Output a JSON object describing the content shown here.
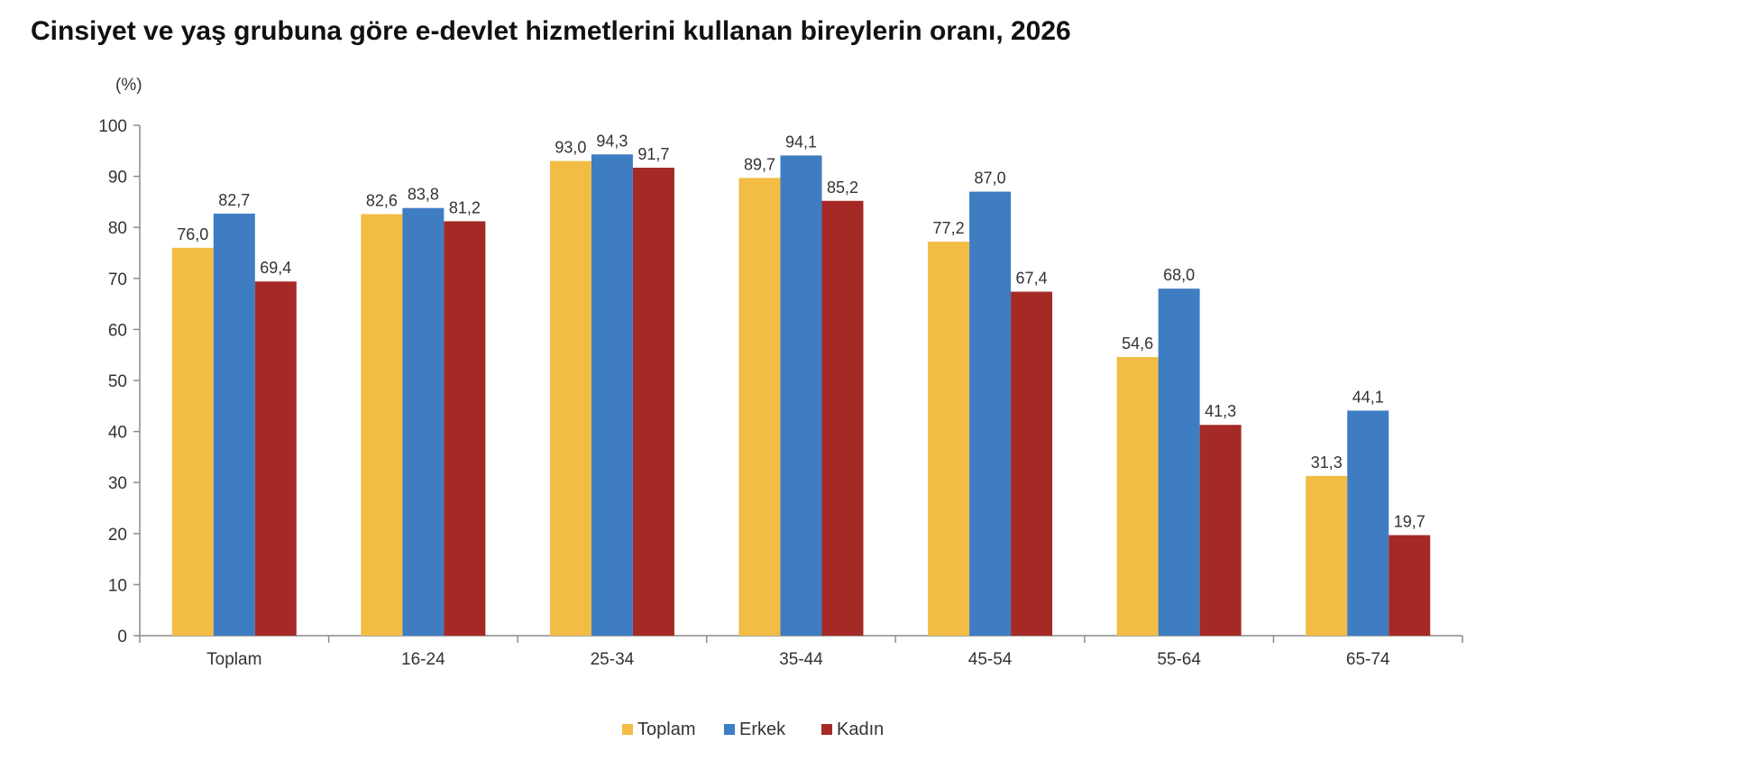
{
  "title": "Cinsiyet ve yaş grubuna göre e-devlet hizmetlerini kullanan bireylerin oranı, 2026",
  "colors": {
    "Toplam": "#F2BC45",
    "Erkek": "#3F7DC3",
    "Kadın": "#A52A25"
  },
  "chart_data": {
    "type": "bar",
    "unit_label": "(%)",
    "categories": [
      "Toplam",
      "16-24",
      "25-34",
      "35-44",
      "45-54",
      "55-64",
      "65-74"
    ],
    "series": [
      {
        "name": "Toplam",
        "values": [
          76.0,
          82.6,
          93.0,
          89.7,
          77.2,
          54.6,
          31.3
        ],
        "labels": [
          "76,0",
          "82,6",
          "93,0",
          "89,7",
          "77,2",
          "54,6",
          "31,3"
        ]
      },
      {
        "name": "Erkek",
        "values": [
          82.7,
          83.8,
          94.3,
          94.1,
          87.0,
          68.0,
          44.1
        ],
        "labels": [
          "82,7",
          "83,8",
          "94,3",
          "94,1",
          "87,0",
          "68,0",
          "44,1"
        ]
      },
      {
        "name": "Kadın",
        "values": [
          69.4,
          81.2,
          91.7,
          85.2,
          67.4,
          41.3,
          19.7
        ],
        "labels": [
          "69,4",
          "81,2",
          "91,7",
          "85,2",
          "67,4",
          "41,3",
          "19,7"
        ]
      }
    ],
    "ylim": [
      0,
      100
    ],
    "yticks": [
      0,
      10,
      20,
      30,
      40,
      50,
      60,
      70,
      80,
      90,
      100
    ],
    "grid": false,
    "legend_position": "bottom-center"
  }
}
